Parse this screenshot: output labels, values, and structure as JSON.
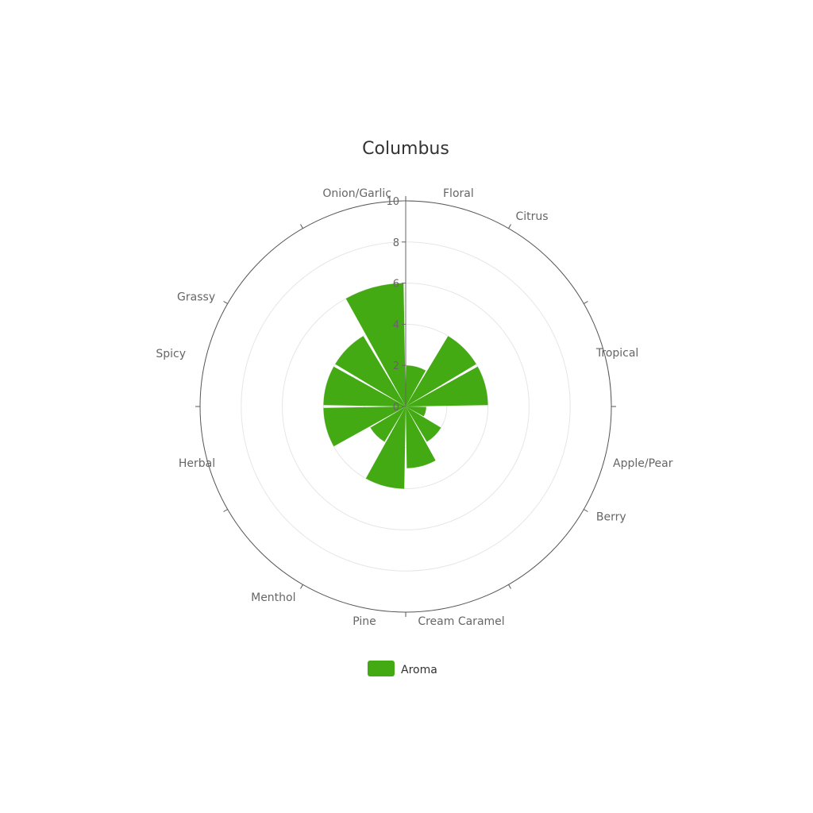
{
  "chart_data": {
    "type": "bar",
    "subtype": "polar",
    "title": "Columbus",
    "categories": [
      "Floral",
      "Citrus",
      "Tropical",
      "Apple/Pear",
      "Berry",
      "Cream Caramel",
      "Pine",
      "Menthol",
      "Herbal",
      "Spicy",
      "Grassy",
      "Onion/Garlic"
    ],
    "series": [
      {
        "name": "Aroma",
        "values": [
          2,
          4,
          4,
          1,
          2,
          3,
          4,
          2,
          4,
          4,
          4,
          6
        ],
        "color": "#44aa14"
      }
    ],
    "radial_axis": {
      "min": 0,
      "max": 10,
      "ticks": [
        0,
        2,
        4,
        6,
        8,
        10
      ]
    },
    "grid": true,
    "legend_position": "bottom"
  }
}
